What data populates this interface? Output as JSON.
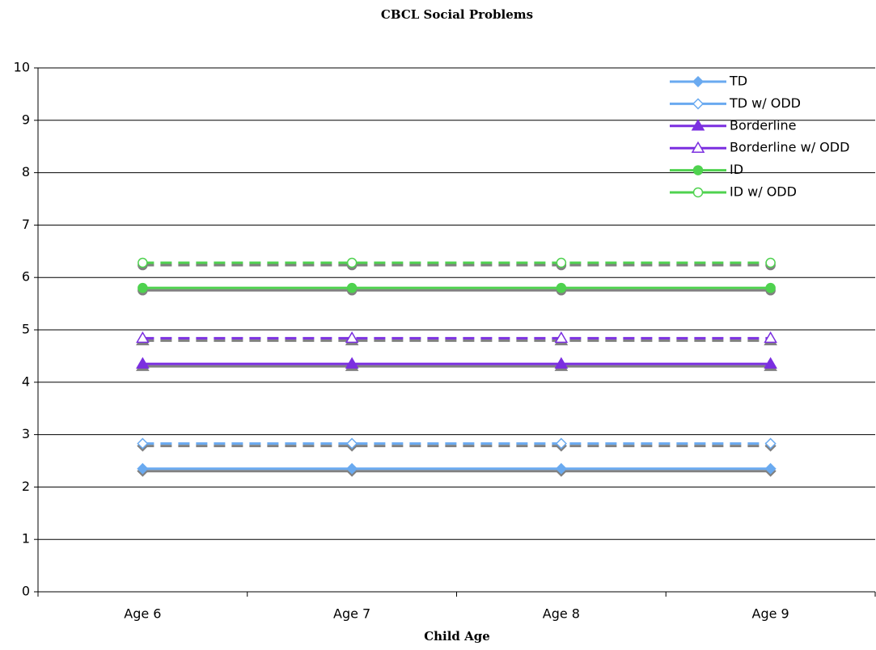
{
  "chart_data": {
    "type": "line",
    "title": "CBCL Social Problems",
    "x_label": "Child Age",
    "categories": [
      "Age 6",
      "Age 7",
      "Age 8",
      "Age 9"
    ],
    "ylim": [
      0,
      10
    ],
    "yticks": [
      0,
      1,
      2,
      3,
      4,
      5,
      6,
      7,
      8,
      9,
      10
    ],
    "grid": true,
    "legend": "top-right",
    "series": [
      {
        "name": "TD",
        "color": "#6aaaf0",
        "marker": "diamond",
        "filled": true,
        "dashed": false,
        "values": [
          2.35,
          2.35,
          2.35,
          2.35
        ]
      },
      {
        "name": "TD w/ ODD",
        "color": "#6aaaf0",
        "marker": "diamond",
        "filled": false,
        "dashed": true,
        "values": [
          2.83,
          2.83,
          2.83,
          2.83
        ]
      },
      {
        "name": "Borderline",
        "color": "#7b2fe0",
        "marker": "triangle",
        "filled": true,
        "dashed": false,
        "values": [
          4.35,
          4.35,
          4.35,
          4.35
        ]
      },
      {
        "name": "Borderline w/ ODD",
        "color": "#7b2fe0",
        "marker": "triangle",
        "filled": false,
        "dashed": true,
        "values": [
          4.84,
          4.84,
          4.84,
          4.84
        ]
      },
      {
        "name": "ID",
        "color": "#4fd24f",
        "marker": "circle",
        "filled": true,
        "dashed": false,
        "values": [
          5.8,
          5.8,
          5.8,
          5.8
        ]
      },
      {
        "name": "ID w/ ODD",
        "color": "#4fd24f",
        "marker": "circle",
        "filled": false,
        "dashed": true,
        "values": [
          6.28,
          6.28,
          6.28,
          6.28
        ]
      }
    ]
  }
}
